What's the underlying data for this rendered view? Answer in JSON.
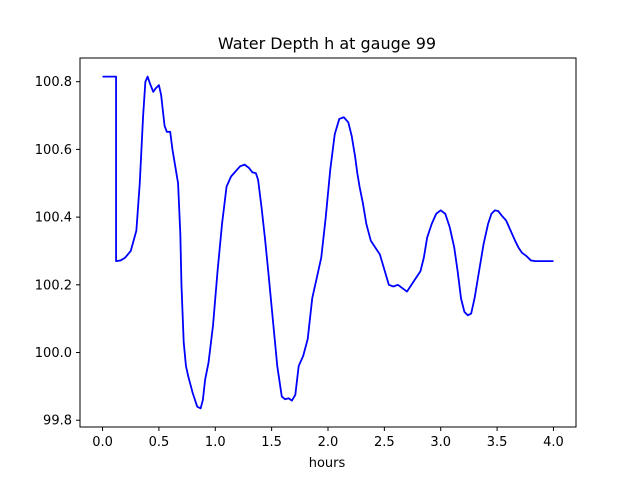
{
  "chart_data": {
    "type": "line",
    "title": "Water Depth h at gauge 99",
    "xlabel": "hours",
    "ylabel": "",
    "xlim": [
      -0.2,
      4.2
    ],
    "ylim": [
      99.78,
      100.87
    ],
    "x_ticks": [
      0.0,
      0.5,
      1.0,
      1.5,
      2.0,
      2.5,
      3.0,
      3.5,
      4.0
    ],
    "x_tick_labels": [
      "0.0",
      "0.5",
      "1.0",
      "1.5",
      "2.0",
      "2.5",
      "3.0",
      "3.5",
      "4.0"
    ],
    "y_ticks": [
      99.8,
      100.0,
      100.2,
      100.4,
      100.6,
      100.8
    ],
    "y_tick_labels": [
      "99.8",
      "100.0",
      "100.2",
      "100.4",
      "100.6",
      "100.8"
    ],
    "grid": false,
    "series": [
      {
        "color": "#0000ff",
        "x": [
          0.0,
          0.06,
          0.12,
          0.12,
          0.16,
          0.2,
          0.25,
          0.3,
          0.33,
          0.36,
          0.38,
          0.4,
          0.42,
          0.45,
          0.47,
          0.5,
          0.52,
          0.55,
          0.57,
          0.6,
          0.62,
          0.64,
          0.67,
          0.69,
          0.7,
          0.72,
          0.74,
          0.76,
          0.8,
          0.84,
          0.87,
          0.89,
          0.91,
          0.94,
          0.98,
          1.02,
          1.06,
          1.1,
          1.14,
          1.18,
          1.22,
          1.26,
          1.3,
          1.33,
          1.36,
          1.38,
          1.41,
          1.44,
          1.47,
          1.51,
          1.55,
          1.59,
          1.62,
          1.65,
          1.68,
          1.71,
          1.74,
          1.78,
          1.82,
          1.86,
          1.9,
          1.94,
          1.98,
          2.02,
          2.06,
          2.1,
          2.14,
          2.18,
          2.21,
          2.24,
          2.26,
          2.28,
          2.31,
          2.34,
          2.38,
          2.42,
          2.46,
          2.5,
          2.54,
          2.58,
          2.62,
          2.66,
          2.7,
          2.74,
          2.78,
          2.82,
          2.85,
          2.88,
          2.92,
          2.96,
          3.0,
          3.04,
          3.08,
          3.12,
          3.15,
          3.18,
          3.21,
          3.24,
          3.27,
          3.3,
          3.34,
          3.38,
          3.42,
          3.45,
          3.48,
          3.51,
          3.54,
          3.58,
          3.62,
          3.66,
          3.69,
          3.72,
          3.76,
          3.8,
          3.84,
          3.88,
          3.92,
          3.96,
          4.0
        ],
        "y": [
          100.815,
          100.815,
          100.815,
          100.27,
          100.272,
          100.28,
          100.3,
          100.36,
          100.5,
          100.7,
          100.8,
          100.815,
          100.795,
          100.77,
          100.78,
          100.79,
          100.76,
          100.67,
          100.652,
          100.652,
          100.6,
          100.56,
          100.5,
          100.35,
          100.2,
          100.03,
          99.96,
          99.93,
          99.88,
          99.84,
          99.835,
          99.86,
          99.92,
          99.97,
          100.08,
          100.24,
          100.38,
          100.49,
          100.52,
          100.535,
          100.55,
          100.555,
          100.545,
          100.532,
          100.53,
          100.51,
          100.43,
          100.34,
          100.24,
          100.1,
          99.96,
          99.87,
          99.862,
          99.865,
          99.858,
          99.875,
          99.96,
          99.99,
          100.04,
          100.16,
          100.22,
          100.28,
          100.4,
          100.54,
          100.645,
          100.69,
          100.695,
          100.68,
          100.64,
          100.58,
          100.53,
          100.49,
          100.44,
          100.38,
          100.33,
          100.31,
          100.29,
          100.245,
          100.2,
          100.195,
          100.2,
          100.19,
          100.18,
          100.2,
          100.22,
          100.24,
          100.28,
          100.34,
          100.38,
          100.41,
          100.42,
          100.41,
          100.37,
          100.31,
          100.24,
          100.16,
          100.12,
          100.11,
          100.115,
          100.16,
          100.24,
          100.32,
          100.38,
          100.41,
          100.42,
          100.418,
          100.405,
          100.39,
          100.36,
          100.33,
          100.31,
          100.295,
          100.285,
          100.272,
          100.27,
          100.27,
          100.27,
          100.27,
          100.27
        ]
      }
    ]
  }
}
